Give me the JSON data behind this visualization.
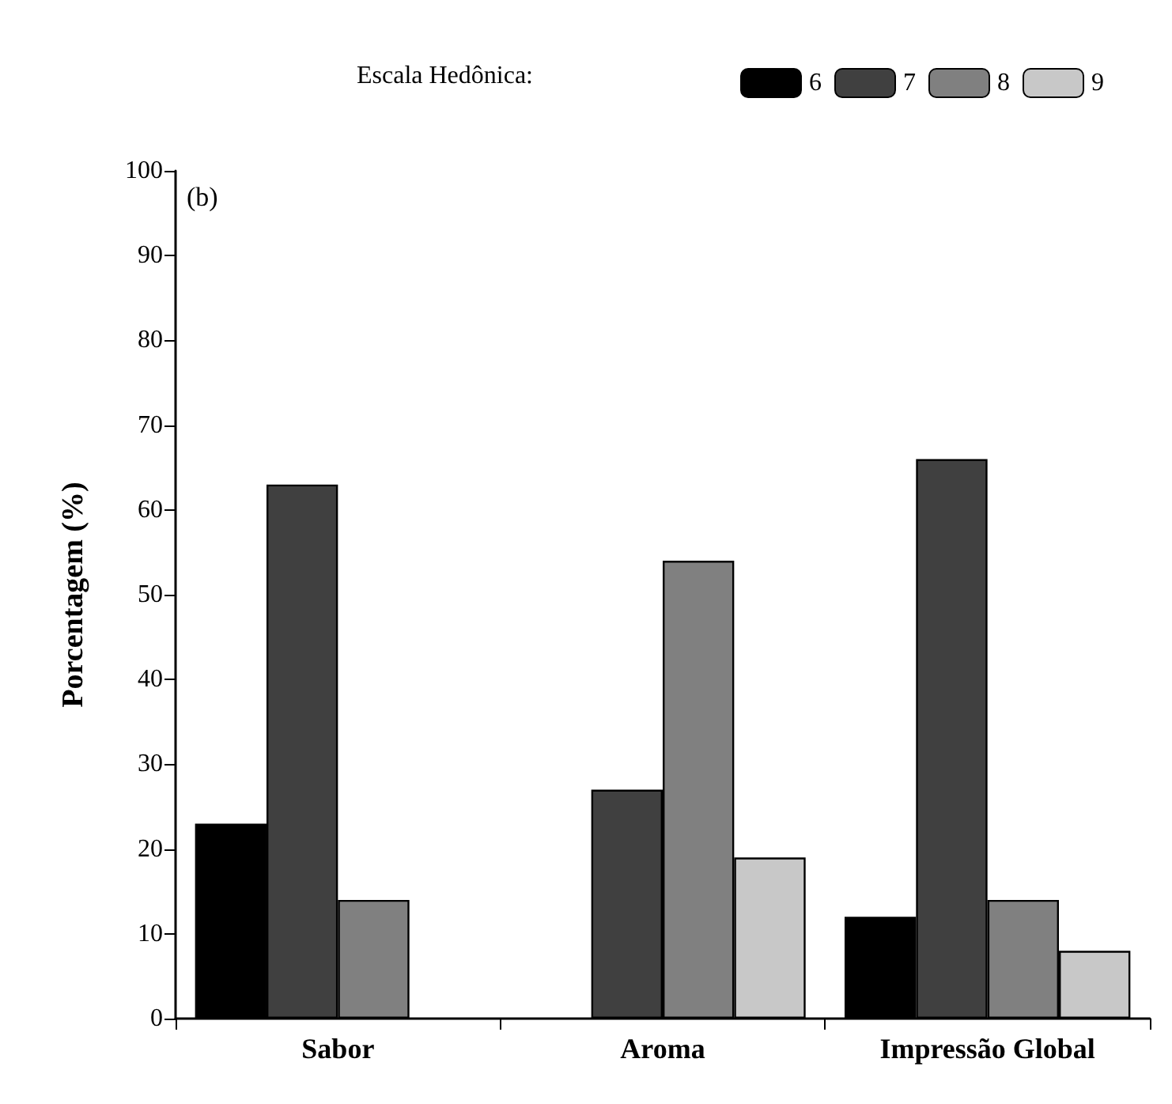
{
  "chart_data": {
    "type": "bar",
    "ylabel": "Porcentagem (%)",
    "legend_title": "Escala Hedônica:",
    "annotations": [
      "(b)"
    ],
    "categories": [
      "Sabor",
      "Aroma",
      "Impressão Global"
    ],
    "series": [
      {
        "name": "6",
        "color": "#000000",
        "values": [
          23,
          null,
          12
        ]
      },
      {
        "name": "7",
        "color": "#404040",
        "values": [
          63,
          27,
          66
        ]
      },
      {
        "name": "8",
        "color": "#808080",
        "values": [
          14,
          54,
          14
        ]
      },
      {
        "name": "9",
        "color": "#c8c8c8",
        "values": [
          null,
          19,
          8
        ]
      }
    ],
    "ylim": [
      0,
      100
    ],
    "yticks": [
      0,
      10,
      20,
      30,
      40,
      50,
      60,
      70,
      80,
      90,
      100
    ],
    "grid": false,
    "legend": "top"
  }
}
